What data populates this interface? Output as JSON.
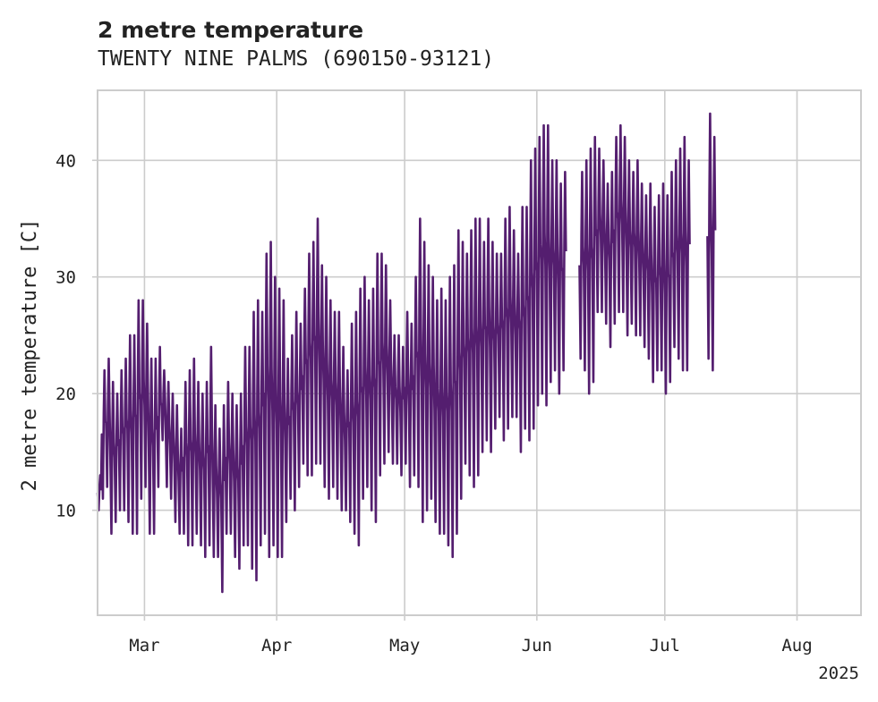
{
  "chart_data": {
    "type": "line",
    "title": "2 metre temperature",
    "subtitle": "TWENTY NINE PALMS (690150-93121)",
    "ylabel": "2 metre temperature [C]",
    "xlabel": "",
    "x_start": "2025-02-18",
    "x_end": "2025-08-16",
    "ylim": [
      1,
      46
    ],
    "yticks": [
      10,
      20,
      30,
      40
    ],
    "xticks": [
      {
        "date": "2025-03-01",
        "label": "Mar"
      },
      {
        "date": "2025-04-01",
        "label": "Apr"
      },
      {
        "date": "2025-05-01",
        "label": "May"
      },
      {
        "date": "2025-06-01",
        "label": "Jun"
      },
      {
        "date": "2025-07-01",
        "label": "Jul"
      },
      {
        "date": "2025-08-01",
        "label": "Aug"
      }
    ],
    "year_label": "2025",
    "grid": true,
    "legend": "none",
    "series_color": "#541e6f",
    "series": [
      {
        "date_start": "2025-02-18",
        "date_end": "2025-08-16",
        "interval": "daily",
        "daily_low": [
          10,
          11,
          12,
          8,
          9,
          10,
          10,
          9,
          8,
          8,
          11,
          12,
          8,
          8,
          12,
          16,
          12,
          11,
          9,
          8,
          8,
          7,
          7,
          8,
          7,
          6,
          7,
          6,
          6,
          3,
          8,
          8,
          6,
          5,
          7,
          7,
          5,
          4,
          7,
          8,
          6,
          7,
          6,
          6,
          9,
          11,
          10,
          12,
          14,
          13,
          13,
          14,
          14,
          12,
          11,
          12,
          11,
          10,
          10,
          9,
          8,
          7,
          11,
          12,
          10,
          9,
          13,
          14,
          15,
          14,
          14,
          13,
          14,
          12,
          13,
          12,
          9,
          10,
          11,
          9,
          8,
          8,
          7,
          6,
          8,
          11,
          14,
          13,
          12,
          13,
          15,
          16,
          15,
          17,
          18,
          16,
          17,
          18,
          18,
          15,
          17,
          16,
          17,
          19,
          20,
          19,
          21,
          22,
          20,
          22,
          19,
          23,
          20,
          23,
          22,
          20,
          21,
          27,
          27,
          26,
          24,
          26,
          27,
          27,
          25,
          26,
          25,
          25,
          24,
          23,
          21,
          22,
          22,
          20,
          21,
          24,
          23,
          22,
          22,
          21,
          25,
          24,
          25,
          23,
          22
        ],
        "daily_high": [
          13,
          22,
          23,
          21,
          20,
          22,
          23,
          25,
          25,
          28,
          28,
          26,
          23,
          23,
          24,
          22,
          21,
          20,
          19,
          17,
          21,
          22,
          23,
          21,
          20,
          21,
          24,
          19,
          17,
          19,
          21,
          20,
          19,
          20,
          24,
          24,
          27,
          28,
          27,
          32,
          33,
          30,
          29,
          28,
          23,
          25,
          27,
          26,
          29,
          32,
          33,
          35,
          31,
          30,
          28,
          27,
          27,
          24,
          22,
          26,
          27,
          29,
          30,
          28,
          29,
          32,
          32,
          31,
          28,
          25,
          25,
          24,
          27,
          26,
          30,
          35,
          33,
          31,
          30,
          28,
          29,
          28,
          30,
          31,
          34,
          33,
          32,
          34,
          35,
          35,
          33,
          35,
          33,
          32,
          32,
          35,
          36,
          34,
          32,
          36,
          36,
          40,
          41,
          42,
          43,
          43,
          40,
          40,
          38,
          39,
          40,
          38,
          38,
          39,
          40,
          41,
          42,
          41,
          40,
          38,
          39,
          42,
          43,
          42,
          40,
          39,
          40,
          38,
          37,
          38,
          36,
          37,
          38,
          37,
          39,
          40,
          41,
          42,
          40,
          43,
          44,
          42,
          43,
          44,
          42
        ],
        "gaps": [
          {
            "from": "2025-06-08",
            "to": "2025-06-11"
          },
          {
            "from": "2025-07-07",
            "to": "2025-07-11"
          }
        ]
      }
    ]
  }
}
